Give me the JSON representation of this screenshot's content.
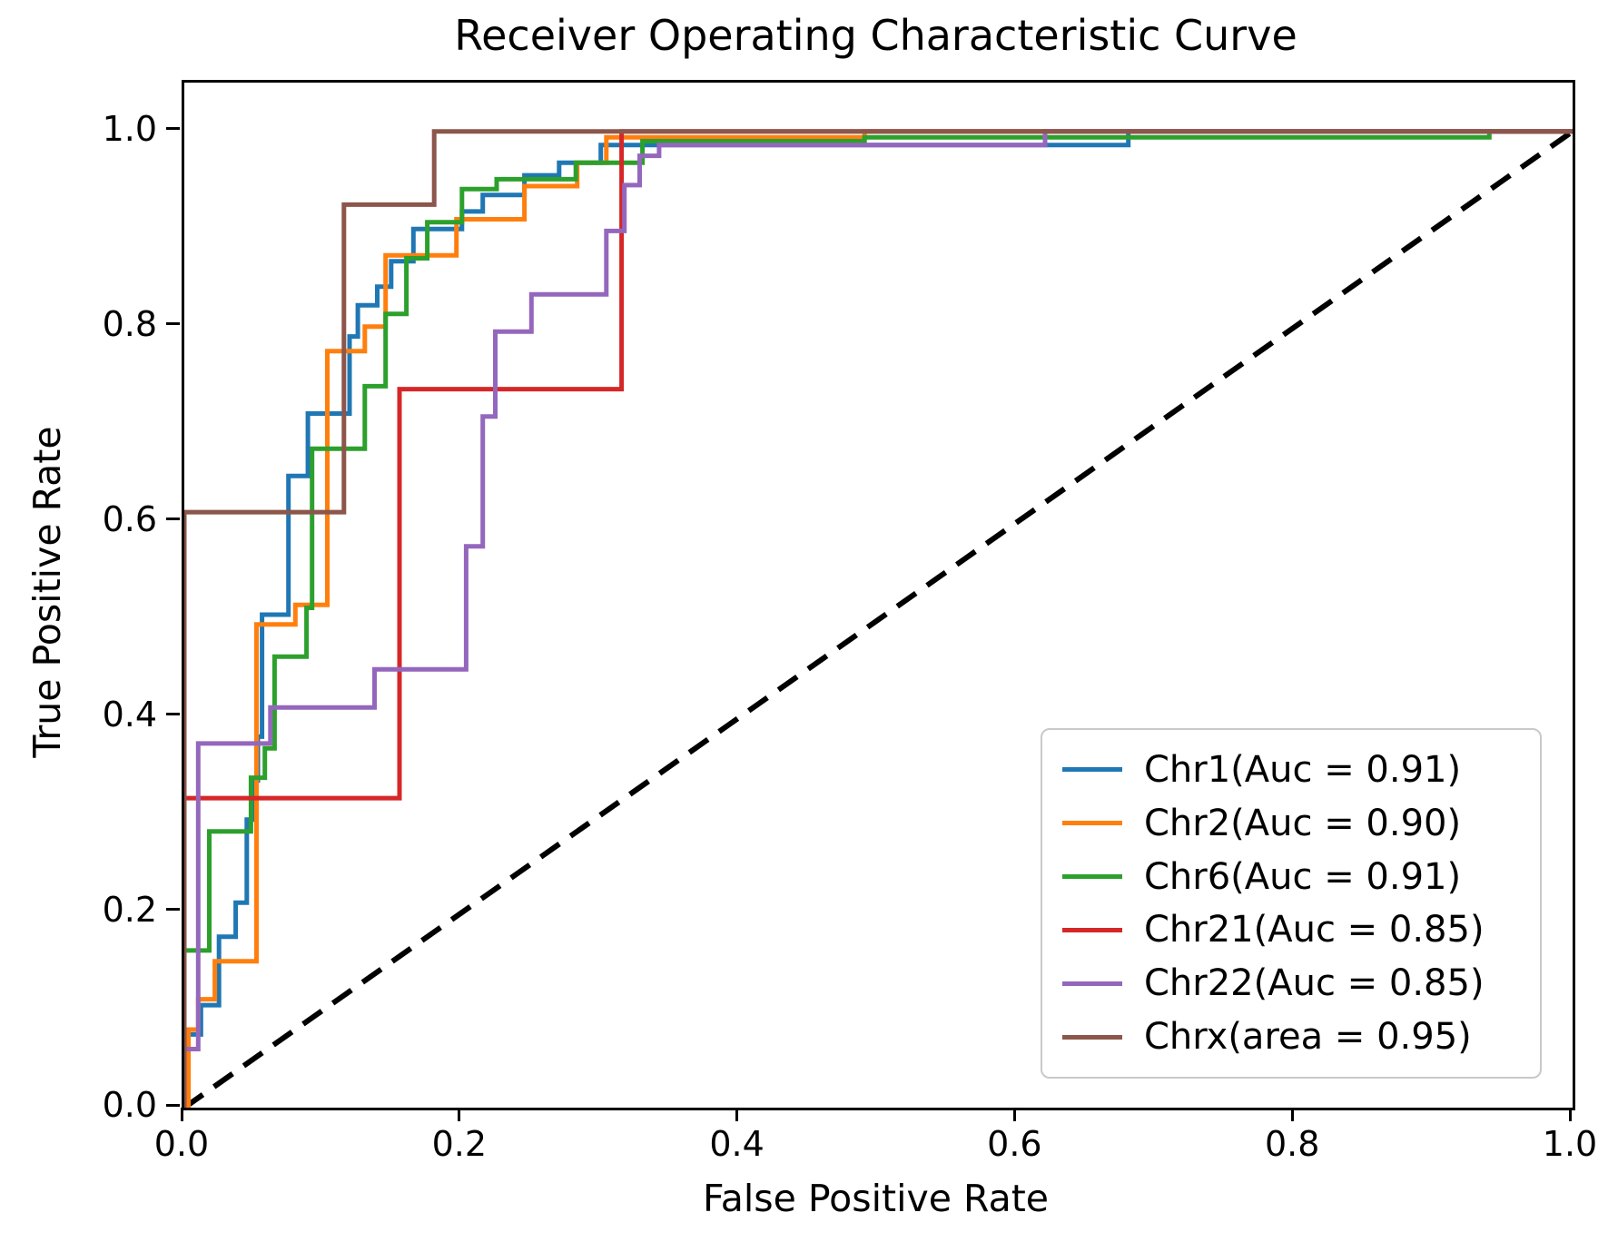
{
  "chart_data": {
    "type": "line",
    "title": "Receiver Operating Characteristic Curve",
    "xlabel": "False Positive Rate",
    "ylabel": "True Positive Rate",
    "xlim": [
      0,
      1
    ],
    "ylim": [
      0,
      1.05
    ],
    "grid": false,
    "legend_position": "lower right",
    "x_ticks": [
      "0.0",
      "0.2",
      "0.4",
      "0.6",
      "0.8",
      "1.0"
    ],
    "y_ticks": [
      "0.0",
      "0.2",
      "0.4",
      "0.6",
      "0.8",
      "1.0"
    ],
    "diagonal": {
      "name": "chance-line",
      "style": "dashed",
      "color": "#000000",
      "points": [
        [
          0,
          0
        ],
        [
          1,
          1
        ]
      ]
    },
    "series": [
      {
        "id": "chr1",
        "label": "Chr1(Auc = 0.91)",
        "auc": 0.91,
        "color": "#1f77b4",
        "points": [
          [
            0,
            0
          ],
          [
            0,
            0.075
          ],
          [
            0.012,
            0.075
          ],
          [
            0.012,
            0.105
          ],
          [
            0.025,
            0.105
          ],
          [
            0.025,
            0.175
          ],
          [
            0.037,
            0.175
          ],
          [
            0.037,
            0.21
          ],
          [
            0.045,
            0.21
          ],
          [
            0.045,
            0.295
          ],
          [
            0.05,
            0.295
          ],
          [
            0.05,
            0.335
          ],
          [
            0.053,
            0.335
          ],
          [
            0.053,
            0.38
          ],
          [
            0.056,
            0.38
          ],
          [
            0.056,
            0.505
          ],
          [
            0.075,
            0.505
          ],
          [
            0.075,
            0.647
          ],
          [
            0.089,
            0.647
          ],
          [
            0.089,
            0.711
          ],
          [
            0.119,
            0.711
          ],
          [
            0.119,
            0.79
          ],
          [
            0.125,
            0.79
          ],
          [
            0.125,
            0.822
          ],
          [
            0.139,
            0.822
          ],
          [
            0.139,
            0.841
          ],
          [
            0.149,
            0.841
          ],
          [
            0.149,
            0.867
          ],
          [
            0.165,
            0.867
          ],
          [
            0.165,
            0.9
          ],
          [
            0.2,
            0.9
          ],
          [
            0.2,
            0.918
          ],
          [
            0.215,
            0.918
          ],
          [
            0.215,
            0.935
          ],
          [
            0.245,
            0.935
          ],
          [
            0.245,
            0.955
          ],
          [
            0.27,
            0.955
          ],
          [
            0.27,
            0.968
          ],
          [
            0.3,
            0.968
          ],
          [
            0.3,
            0.986
          ],
          [
            0.68,
            0.986
          ],
          [
            0.68,
            1
          ],
          [
            1,
            1
          ]
        ]
      },
      {
        "id": "chr2",
        "label": "Chr2(Auc = 0.90)",
        "auc": 0.9,
        "color": "#ff7f0e",
        "points": [
          [
            0,
            0
          ],
          [
            0.003,
            0
          ],
          [
            0.003,
            0.08
          ],
          [
            0.01,
            0.08
          ],
          [
            0.01,
            0.111
          ],
          [
            0.022,
            0.111
          ],
          [
            0.022,
            0.15
          ],
          [
            0.052,
            0.15
          ],
          [
            0.052,
            0.495
          ],
          [
            0.08,
            0.495
          ],
          [
            0.08,
            0.515
          ],
          [
            0.103,
            0.515
          ],
          [
            0.103,
            0.775
          ],
          [
            0.13,
            0.775
          ],
          [
            0.13,
            0.8
          ],
          [
            0.145,
            0.8
          ],
          [
            0.145,
            0.873
          ],
          [
            0.196,
            0.873
          ],
          [
            0.196,
            0.91
          ],
          [
            0.245,
            0.91
          ],
          [
            0.245,
            0.944
          ],
          [
            0.283,
            0.944
          ],
          [
            0.283,
            0.968
          ],
          [
            0.304,
            0.968
          ],
          [
            0.304,
            0.994
          ],
          [
            0.49,
            0.994
          ],
          [
            0.49,
            1
          ],
          [
            1,
            1
          ]
        ]
      },
      {
        "id": "chr6",
        "label": "Chr6(Auc = 0.91)",
        "auc": 0.91,
        "color": "#2ca02c",
        "points": [
          [
            0,
            0
          ],
          [
            0,
            0.161
          ],
          [
            0.018,
            0.161
          ],
          [
            0.018,
            0.283
          ],
          [
            0.048,
            0.283
          ],
          [
            0.048,
            0.338
          ],
          [
            0.058,
            0.338
          ],
          [
            0.058,
            0.368
          ],
          [
            0.065,
            0.368
          ],
          [
            0.065,
            0.462
          ],
          [
            0.088,
            0.462
          ],
          [
            0.088,
            0.512
          ],
          [
            0.092,
            0.512
          ],
          [
            0.092,
            0.675
          ],
          [
            0.13,
            0.675
          ],
          [
            0.13,
            0.739
          ],
          [
            0.145,
            0.739
          ],
          [
            0.145,
            0.813
          ],
          [
            0.16,
            0.813
          ],
          [
            0.16,
            0.87
          ],
          [
            0.175,
            0.87
          ],
          [
            0.175,
            0.907
          ],
          [
            0.2,
            0.907
          ],
          [
            0.2,
            0.941
          ],
          [
            0.225,
            0.941
          ],
          [
            0.225,
            0.951
          ],
          [
            0.282,
            0.951
          ],
          [
            0.282,
            0.968
          ],
          [
            0.33,
            0.968
          ],
          [
            0.33,
            0.99
          ],
          [
            0.49,
            0.99
          ],
          [
            0.49,
            0.994
          ],
          [
            0.94,
            0.994
          ],
          [
            0.94,
            1
          ],
          [
            1,
            1
          ]
        ]
      },
      {
        "id": "chr21",
        "label": "Chr21(Auc = 0.85)",
        "auc": 0.85,
        "color": "#d62728",
        "points": [
          [
            0,
            0
          ],
          [
            0,
            0.317
          ],
          [
            0.155,
            0.317
          ],
          [
            0.155,
            0.736
          ],
          [
            0.315,
            0.736
          ],
          [
            0.315,
            1
          ],
          [
            1,
            1
          ]
        ]
      },
      {
        "id": "chr22",
        "label": "Chr22(Auc = 0.85)",
        "auc": 0.85,
        "color": "#9467bd",
        "points": [
          [
            0,
            0
          ],
          [
            0,
            0.06
          ],
          [
            0.01,
            0.06
          ],
          [
            0.01,
            0.373
          ],
          [
            0.062,
            0.373
          ],
          [
            0.062,
            0.41
          ],
          [
            0.137,
            0.41
          ],
          [
            0.137,
            0.449
          ],
          [
            0.203,
            0.449
          ],
          [
            0.203,
            0.575
          ],
          [
            0.215,
            0.575
          ],
          [
            0.215,
            0.708
          ],
          [
            0.224,
            0.708
          ],
          [
            0.224,
            0.795
          ],
          [
            0.25,
            0.795
          ],
          [
            0.25,
            0.833
          ],
          [
            0.304,
            0.833
          ],
          [
            0.304,
            0.898
          ],
          [
            0.317,
            0.898
          ],
          [
            0.317,
            0.945
          ],
          [
            0.328,
            0.945
          ],
          [
            0.328,
            0.975
          ],
          [
            0.342,
            0.975
          ],
          [
            0.342,
            0.986
          ],
          [
            0.62,
            0.986
          ],
          [
            0.62,
            1
          ],
          [
            1,
            1
          ]
        ]
      },
      {
        "id": "chrx",
        "label": "Chrx(area = 0.95)",
        "auc": 0.95,
        "color": "#8c564b",
        "points": [
          [
            0,
            0
          ],
          [
            0,
            0.61
          ],
          [
            0.115,
            0.61
          ],
          [
            0.115,
            0.925
          ],
          [
            0.18,
            0.925
          ],
          [
            0.18,
            1
          ],
          [
            1,
            1
          ]
        ]
      }
    ]
  }
}
